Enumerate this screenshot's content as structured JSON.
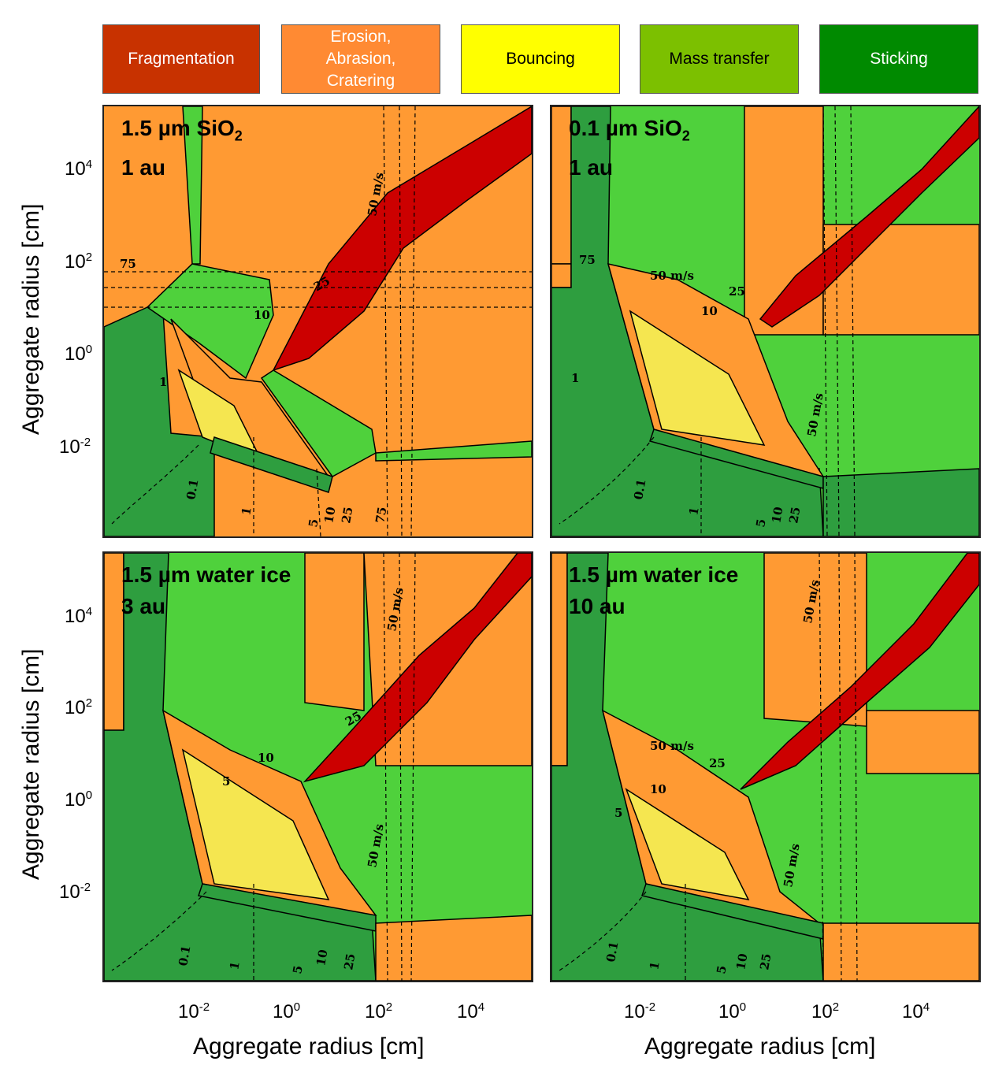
{
  "legend": [
    {
      "label": "Fragmentation",
      "color": "#c83200",
      "text_color": "#ffffff"
    },
    {
      "label": "Erosion,\nAbrasion,\nCratering",
      "color": "#ff8a33",
      "text_color": "#ffffff"
    },
    {
      "label": "Bouncing",
      "color": "#ffff00",
      "text_color": "#000000"
    },
    {
      "label": "Mass transfer",
      "color": "#7cc000",
      "text_color": "#000000"
    },
    {
      "label": "Sticking",
      "color": "#008a00",
      "text_color": "#ffffff"
    }
  ],
  "colors": {
    "fragmentation": "#cc0000",
    "erosion": "#ff9a33",
    "bouncing": "#f5e650",
    "mass_transfer": "#4fd13c",
    "sticking": "#2e9e3f"
  },
  "chart_data": [
    {
      "type": "heatmap",
      "title_line1": "1.5 µm SiO",
      "title_sub": "2",
      "title_line2": "1 au",
      "xlabel": "Aggregate radius [cm]",
      "ylabel": "Aggregate radius [cm]",
      "x_ticks": [
        {
          "base": "10",
          "exp": "-2"
        },
        {
          "base": "10",
          "exp": "0"
        },
        {
          "base": "10",
          "exp": "2"
        },
        {
          "base": "10",
          "exp": "4"
        }
      ],
      "y_ticks": [
        {
          "base": "10",
          "exp": "4"
        },
        {
          "base": "10",
          "exp": "2"
        },
        {
          "base": "10",
          "exp": "0"
        },
        {
          "base": "10",
          "exp": "-2"
        }
      ],
      "velocity_contours": [
        "0.1",
        "1",
        "5",
        "10",
        "25",
        "50 m/s",
        "75"
      ]
    },
    {
      "type": "heatmap",
      "title_line1": "0.1 µm SiO",
      "title_sub": "2",
      "title_line2": "1 au",
      "velocity_contours": [
        "0.1",
        "1",
        "5",
        "10",
        "25",
        "50 m/s",
        "75"
      ]
    },
    {
      "type": "heatmap",
      "title_line1": "1.5 µm water ice",
      "title_sub": "",
      "title_line2": "3 au",
      "x_ticks": [
        {
          "base": "10",
          "exp": "-2"
        },
        {
          "base": "10",
          "exp": "0"
        },
        {
          "base": "10",
          "exp": "2"
        },
        {
          "base": "10",
          "exp": "4"
        }
      ],
      "y_ticks": [
        {
          "base": "10",
          "exp": "4"
        },
        {
          "base": "10",
          "exp": "2"
        },
        {
          "base": "10",
          "exp": "0"
        },
        {
          "base": "10",
          "exp": "-2"
        }
      ],
      "velocity_contours": [
        "0.1",
        "1",
        "5",
        "10",
        "25",
        "50 m/s"
      ]
    },
    {
      "type": "heatmap",
      "title_line1": "1.5 µm water ice",
      "title_sub": "",
      "title_line2": "10 au",
      "x_ticks": [
        {
          "base": "10",
          "exp": "-2"
        },
        {
          "base": "10",
          "exp": "0"
        },
        {
          "base": "10",
          "exp": "2"
        },
        {
          "base": "10",
          "exp": "4"
        }
      ],
      "velocity_contours": [
        "0.1",
        "1",
        "5",
        "10",
        "25",
        "50 m/s"
      ]
    }
  ],
  "axes": {
    "ylabel": "Aggregate radius [cm]",
    "xlabel": "Aggregate radius [cm]"
  }
}
